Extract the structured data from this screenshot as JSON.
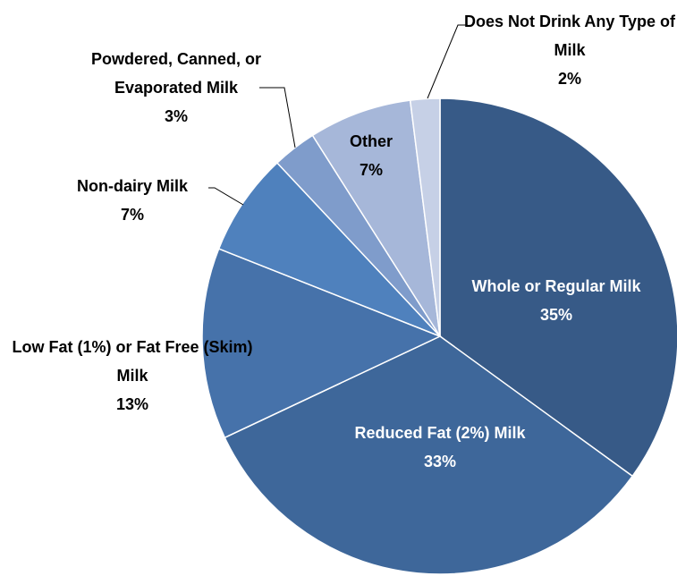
{
  "chart_data": {
    "type": "pie",
    "categories": [
      "Whole or Regular Milk",
      "Reduced Fat (2%) Milk",
      "Low Fat (1%) or Fat Free (Skim) Milk",
      "Non-dairy Milk",
      "Powdered, Canned, or Evaporated Milk",
      "Other",
      "Does Not Drink Any Type of Milk"
    ],
    "values": [
      35,
      33,
      13,
      7,
      3,
      7,
      2
    ],
    "value_labels": [
      "35%",
      "33%",
      "13%",
      "7%",
      "3%",
      "7%",
      "2%"
    ],
    "colors": [
      "#375a87",
      "#3e679a",
      "#4672aa",
      "#4f81bd",
      "#7f9ccb",
      "#a6b7d9",
      "#c6d0e6"
    ]
  }
}
